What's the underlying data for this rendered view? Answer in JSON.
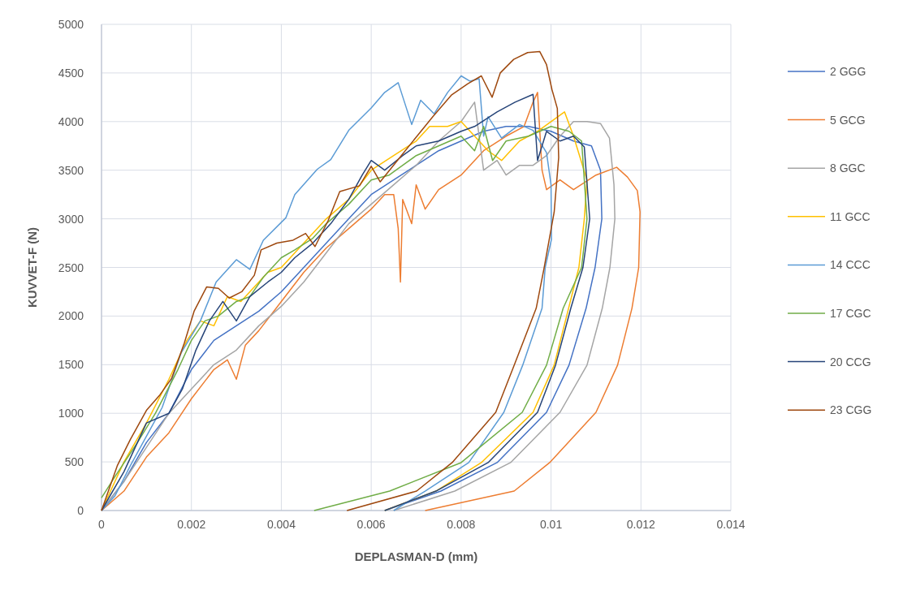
{
  "chart_data": {
    "type": "line",
    "xlabel": "DEPLASMAN-D (mm)",
    "ylabel": "KUVVET-F (N)",
    "xlim": [
      0,
      0.014
    ],
    "xticks": [
      0,
      0.002,
      0.004,
      0.006,
      0.008,
      0.01,
      0.012,
      0.014
    ],
    "ylim": [
      0,
      5000
    ],
    "yticks": [
      0,
      500,
      1000,
      1500,
      2000,
      2500,
      3000,
      3500,
      4000,
      4500,
      5000
    ],
    "grid": true,
    "legend": "right",
    "series": [
      {
        "name": "2 GGG",
        "color": "#4472c4",
        "x": [
          0,
          0.0005,
          0.001,
          0.0015,
          0.002,
          0.0025,
          0.003,
          0.0035,
          0.004,
          0.0045,
          0.005,
          0.0055,
          0.006,
          0.0065,
          0.007,
          0.0075,
          0.008,
          0.0085,
          0.009,
          0.0095,
          0.01,
          0.0105,
          0.0109,
          0.0111,
          0.01113,
          0.01098,
          0.01078,
          0.0104,
          0.0099,
          0.0088,
          0.00755,
          0.0063
        ],
        "values": [
          0,
          300,
          700,
          1000,
          1450,
          1750,
          1900,
          2050,
          2250,
          2500,
          2750,
          3000,
          3250,
          3400,
          3550,
          3700,
          3800,
          3900,
          3950,
          3950,
          3900,
          3800,
          3750,
          3500,
          3000,
          2500,
          2080,
          1495,
          1010,
          493,
          200,
          0
        ]
      },
      {
        "name": "5 GCG",
        "color": "#ed7d31",
        "x": [
          0,
          0.0005,
          0.001,
          0.0015,
          0.002,
          0.0025,
          0.0028,
          0.003,
          0.0032,
          0.0035,
          0.004,
          0.0045,
          0.005,
          0.0055,
          0.006,
          0.0063,
          0.0065,
          0.0066,
          0.00665,
          0.0067,
          0.0069,
          0.007,
          0.0072,
          0.0075,
          0.008,
          0.0085,
          0.009,
          0.0094,
          0.0096,
          0.0097,
          0.0098,
          0.0099,
          0.0102,
          0.0105,
          0.011,
          0.01146,
          0.0117,
          0.01192,
          0.01198,
          0.01195,
          0.0118,
          0.01148,
          0.011,
          0.00997,
          0.00918,
          0.0072
        ],
        "values": [
          0,
          200,
          550,
          800,
          1150,
          1450,
          1550,
          1350,
          1700,
          1850,
          2150,
          2450,
          2700,
          2900,
          3100,
          3250,
          3250,
          2900,
          2350,
          3200,
          2950,
          3350,
          3100,
          3300,
          3450,
          3700,
          3850,
          3950,
          4200,
          4300,
          3500,
          3300,
          3400,
          3300,
          3450,
          3530,
          3430,
          3290,
          3070,
          2500,
          2080,
          1495,
          1010,
          493,
          200,
          0
        ]
      },
      {
        "name": "8 GGC",
        "color": "#a5a5a5",
        "x": [
          0,
          0.0005,
          0.001,
          0.0015,
          0.002,
          0.0025,
          0.003,
          0.0035,
          0.004,
          0.0045,
          0.005,
          0.0055,
          0.006,
          0.0065,
          0.007,
          0.0075,
          0.008,
          0.0083,
          0.0085,
          0.0088,
          0.009,
          0.0093,
          0.0096,
          0.0099,
          0.0102,
          0.0105,
          0.0108,
          0.0111,
          0.0113,
          0.0114,
          0.01142,
          0.01131,
          0.01114,
          0.0108,
          0.0102,
          0.0091,
          0.00786,
          0.0065
        ],
        "values": [
          0,
          300,
          650,
          1000,
          1250,
          1500,
          1650,
          1900,
          2100,
          2350,
          2650,
          2950,
          3150,
          3350,
          3550,
          3800,
          4000,
          4200,
          3500,
          3600,
          3450,
          3550,
          3550,
          3650,
          3850,
          4000,
          4000,
          3980,
          3830,
          3350,
          3000,
          2500,
          2080,
          1495,
          1010,
          493,
          200,
          0
        ]
      },
      {
        "name": "11 GCC",
        "color": "#ffc000",
        "x": [
          0,
          0.0005,
          0.001,
          0.0015,
          0.0019,
          0.0022,
          0.0025,
          0.0028,
          0.0031,
          0.0034,
          0.0037,
          0.004,
          0.0043,
          0.0046,
          0.005,
          0.0055,
          0.006,
          0.0065,
          0.007,
          0.0073,
          0.0077,
          0.008,
          0.0083,
          0.0086,
          0.0089,
          0.0093,
          0.0097,
          0.01,
          0.0103,
          0.0105,
          0.0108,
          0.01074,
          0.01062,
          0.01039,
          0.01007,
          0.0096,
          0.00845,
          0.00744,
          0.0063
        ],
        "values": [
          0,
          500,
          900,
          1350,
          1750,
          1950,
          1900,
          2200,
          2150,
          2300,
          2450,
          2500,
          2650,
          2800,
          3000,
          3200,
          3500,
          3650,
          3800,
          3950,
          3950,
          4000,
          3850,
          3700,
          3600,
          3800,
          3900,
          4000,
          4100,
          3850,
          3400,
          3000,
          2500,
          2080,
          1495,
          1010,
          493,
          200,
          0
        ]
      },
      {
        "name": "14 CCC",
        "color": "#5b9bd5",
        "x": [
          0,
          0.0003,
          0.00064,
          0.00135,
          0.00177,
          0.0022,
          0.00255,
          0.003,
          0.0033,
          0.0036,
          0.0041,
          0.0043,
          0.0048,
          0.0051,
          0.0055,
          0.006,
          0.0063,
          0.0066,
          0.0069,
          0.0071,
          0.0074,
          0.0077,
          0.008,
          0.0082,
          0.0084,
          0.0085,
          0.0086,
          0.0089,
          0.0093,
          0.0096,
          0.0099,
          0.01,
          0.01001,
          0.00987,
          0.0098,
          0.00937,
          0.00895,
          0.00817,
          0.0072,
          0.0065
        ],
        "values": [
          0,
          150,
          460,
          1060,
          1620,
          1950,
          2350,
          2580,
          2480,
          2780,
          3010,
          3250,
          3510,
          3610,
          3910,
          4140,
          4300,
          4400,
          3970,
          4220,
          4080,
          4300,
          4470,
          4415,
          4440,
          3850,
          4050,
          3830,
          3970,
          3910,
          3680,
          3350,
          2790,
          2500,
          2080,
          1495,
          1010,
          493,
          200,
          0
        ]
      },
      {
        "name": "17 CGC",
        "color": "#70ad47",
        "x": [
          0,
          0.0003,
          0.0008,
          0.0012,
          0.0017,
          0.002,
          0.0023,
          0.0026,
          0.003,
          0.0033,
          0.0036,
          0.004,
          0.0043,
          0.0047,
          0.005,
          0.0055,
          0.006,
          0.0064,
          0.0067,
          0.007,
          0.0075,
          0.008,
          0.0083,
          0.0085,
          0.0087,
          0.009,
          0.0095,
          0.01,
          0.0104,
          0.01068,
          0.0108,
          0.01068,
          0.01027,
          0.0099,
          0.00936,
          0.008,
          0.00641,
          0.00473
        ],
        "values": [
          130,
          350,
          700,
          1000,
          1450,
          1750,
          1950,
          2000,
          2150,
          2200,
          2400,
          2600,
          2680,
          2800,
          2950,
          3150,
          3400,
          3450,
          3550,
          3650,
          3750,
          3850,
          3700,
          3950,
          3600,
          3800,
          3850,
          3950,
          3900,
          3800,
          3000,
          2500,
          2080,
          1495,
          1010,
          493,
          200,
          0
        ]
      },
      {
        "name": "20 CCG",
        "color": "#264478",
        "x": [
          0,
          0.0005,
          0.001,
          0.0015,
          0.0018,
          0.0021,
          0.0024,
          0.0027,
          0.003,
          0.0033,
          0.0037,
          0.004,
          0.0043,
          0.0047,
          0.0051,
          0.0055,
          0.0058,
          0.006,
          0.0063,
          0.0067,
          0.007,
          0.0075,
          0.008,
          0.0083,
          0.0088,
          0.0092,
          0.0096,
          0.0097,
          0.0099,
          0.0102,
          0.0105,
          0.01074,
          0.01086,
          0.01071,
          0.01044,
          0.0101,
          0.0097,
          0.0086,
          0.00744,
          0.0063
        ],
        "values": [
          0,
          400,
          900,
          1000,
          1250,
          1650,
          1950,
          2150,
          1950,
          2200,
          2350,
          2450,
          2600,
          2750,
          2950,
          3200,
          3450,
          3600,
          3500,
          3650,
          3750,
          3800,
          3900,
          3950,
          4100,
          4200,
          4280,
          3600,
          3900,
          3800,
          3850,
          3740,
          3000,
          2500,
          2080,
          1495,
          1010,
          493,
          200,
          0
        ]
      },
      {
        "name": "23 CGG",
        "color": "#9e480e",
        "x": [
          0,
          0.00035,
          0.00064,
          0.001,
          0.0013,
          0.00156,
          0.00184,
          0.00206,
          0.00234,
          0.0026,
          0.00284,
          0.00312,
          0.0034,
          0.00355,
          0.0039,
          0.00426,
          0.00454,
          0.00475,
          0.00504,
          0.0053,
          0.00574,
          0.006,
          0.0062,
          0.0066,
          0.007,
          0.00737,
          0.00779,
          0.00815,
          0.00845,
          0.00869,
          0.00887,
          0.00917,
          0.00948,
          0.00975,
          0.0099,
          0.01002,
          0.01014,
          0.01017,
          0.01007,
          0.00984,
          0.00967,
          0.00918,
          0.00877,
          0.0078,
          0.00701,
          0.00546
        ],
        "values": [
          0,
          460,
          730,
          1030,
          1190,
          1360,
          1720,
          2050,
          2300,
          2285,
          2185,
          2250,
          2420,
          2680,
          2750,
          2780,
          2850,
          2715,
          2980,
          3280,
          3340,
          3540,
          3380,
          3610,
          3840,
          4050,
          4275,
          4390,
          4470,
          4250,
          4500,
          4640,
          4710,
          4720,
          4585,
          4330,
          4135,
          3630,
          3070,
          2480,
          2080,
          1495,
          1010,
          493,
          200,
          0
        ]
      }
    ]
  }
}
